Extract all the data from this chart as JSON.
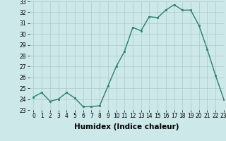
{
  "x": [
    0,
    1,
    2,
    3,
    4,
    5,
    6,
    7,
    8,
    9,
    10,
    11,
    12,
    13,
    14,
    15,
    16,
    17,
    18,
    19,
    20,
    21,
    22,
    23
  ],
  "y": [
    24.2,
    24.6,
    23.8,
    24.0,
    24.6,
    24.1,
    23.3,
    23.3,
    23.4,
    25.2,
    27.0,
    28.4,
    30.6,
    30.3,
    31.6,
    31.5,
    32.2,
    32.7,
    32.2,
    32.2,
    30.8,
    28.6,
    26.2,
    24.0
  ],
  "line_color": "#2e7d6e",
  "marker_color": "#2e7d6e",
  "bg_color": "#cce8e8",
  "grid_color": "#aacccc",
  "xlabel": "Humidex (Indice chaleur)",
  "ylim": [
    23,
    33
  ],
  "xlim": [
    -0.5,
    23
  ],
  "yticks": [
    23,
    24,
    25,
    26,
    27,
    28,
    29,
    30,
    31,
    32,
    33
  ],
  "xticks": [
    0,
    1,
    2,
    3,
    4,
    5,
    6,
    7,
    8,
    9,
    10,
    11,
    12,
    13,
    14,
    15,
    16,
    17,
    18,
    19,
    20,
    21,
    22,
    23
  ],
  "tick_fontsize": 5.5,
  "xlabel_fontsize": 7.5,
  "xlabel_fontweight": "bold"
}
